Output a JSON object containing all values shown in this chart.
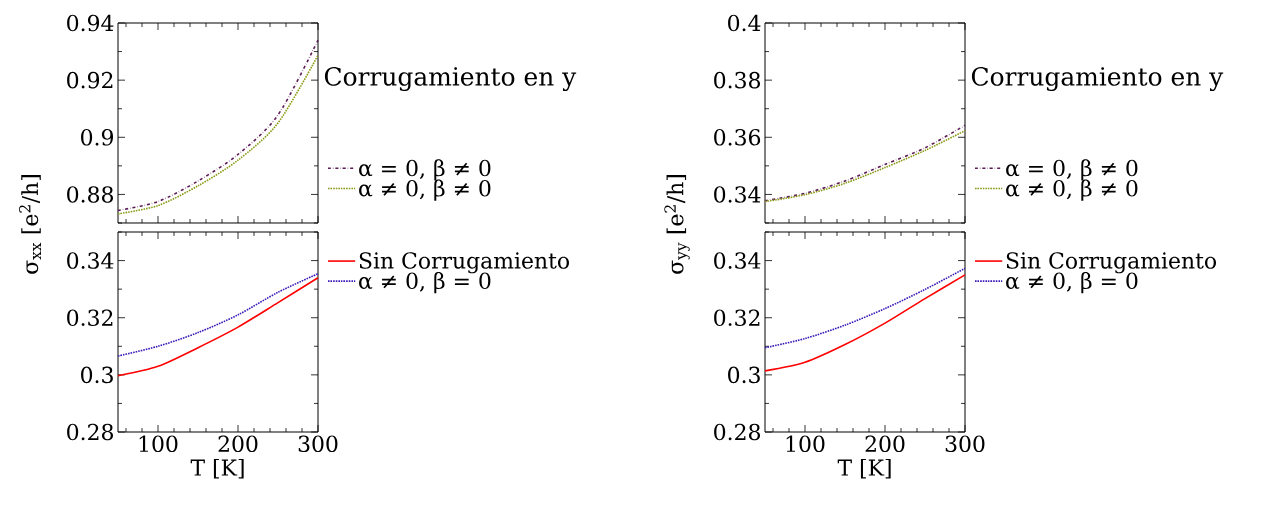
{
  "chart_data": [
    {
      "type": "line",
      "legend_title": "Corrugamiento en y",
      "x": [
        50,
        100,
        150,
        200,
        250,
        300
      ],
      "xlim": [
        50,
        300
      ],
      "xticks": [
        100,
        200,
        300
      ],
      "ylim": [
        0.87,
        0.94
      ],
      "yticks": [
        0.88,
        0.9,
        0.92,
        0.94
      ],
      "tick_labels": "y",
      "legend": "right",
      "series": [
        {
          "name": "α = 0, β ≠ 0",
          "color": "#5c1a55",
          "line_style": "dashed",
          "values": [
            0.8744,
            0.8775,
            0.8847,
            0.894,
            0.9078,
            0.934
          ]
        },
        {
          "name": "α ≠ 0, β ≠ 0",
          "color": "#8a9a16",
          "line_style": "dotted",
          "values": [
            0.8732,
            0.8761,
            0.883,
            0.892,
            0.905,
            0.9287
          ]
        }
      ]
    },
    {
      "type": "line",
      "xlabel": "T [K]",
      "ylabel": "σ$_{xx}$ [e$^{2}$/h]",
      "x": [
        50,
        100,
        150,
        200,
        250,
        300
      ],
      "xlim": [
        50,
        300
      ],
      "xticks": [
        100,
        200,
        300
      ],
      "ylim": [
        0.28,
        0.35
      ],
      "yticks": [
        0.28,
        0.3,
        0.32,
        0.34
      ],
      "legend": "right",
      "series": [
        {
          "name": "Sin Corrugamiento",
          "color": "#ff0000",
          "line_style": "solid",
          "values": [
            0.2997,
            0.303,
            0.3095,
            0.3167,
            0.3253,
            0.334
          ]
        },
        {
          "name": "α ≠ 0, β = 0",
          "color": "#3a1ab8",
          "line_style": "dotted",
          "values": [
            0.3066,
            0.31,
            0.3148,
            0.321,
            0.3289,
            0.3354
          ]
        }
      ]
    },
    {
      "type": "line",
      "legend_title": "Corrugamiento en y",
      "x": [
        50,
        100,
        150,
        200,
        250,
        300
      ],
      "xlim": [
        50,
        300
      ],
      "xticks": [
        100,
        200,
        300
      ],
      "ylim": [
        0.33,
        0.4
      ],
      "yticks": [
        0.34,
        0.36,
        0.38,
        0.4
      ],
      "tick_labels": "y",
      "legend": "right",
      "series": [
        {
          "name": "α = 0, β ≠ 0",
          "color": "#5c1a55",
          "line_style": "dashed",
          "values": [
            0.3378,
            0.3404,
            0.3447,
            0.3505,
            0.3563,
            0.3642
          ]
        },
        {
          "name": "α ≠ 0, β ≠ 0",
          "color": "#8a9a16",
          "line_style": "dotted",
          "values": [
            0.3375,
            0.3399,
            0.3439,
            0.3494,
            0.3554,
            0.3623
          ]
        }
      ]
    },
    {
      "type": "line",
      "xlabel": "T [K]",
      "ylabel": "σ$_{yy}$ [e$^{2}$/h]",
      "x": [
        50,
        100,
        150,
        200,
        250,
        300
      ],
      "xlim": [
        50,
        300
      ],
      "xticks": [
        100,
        200,
        300
      ],
      "ylim": [
        0.28,
        0.35
      ],
      "yticks": [
        0.28,
        0.3,
        0.32,
        0.34
      ],
      "legend": "right",
      "series": [
        {
          "name": "Sin Corrugamiento",
          "color": "#ff0000",
          "line_style": "solid",
          "values": [
            0.3014,
            0.3044,
            0.3106,
            0.3181,
            0.3267,
            0.335
          ]
        },
        {
          "name": "α ≠ 0, β = 0",
          "color": "#3a1ab8",
          "line_style": "dotted",
          "values": [
            0.3095,
            0.3127,
            0.3174,
            0.3232,
            0.3299,
            0.3373
          ]
        }
      ]
    }
  ]
}
